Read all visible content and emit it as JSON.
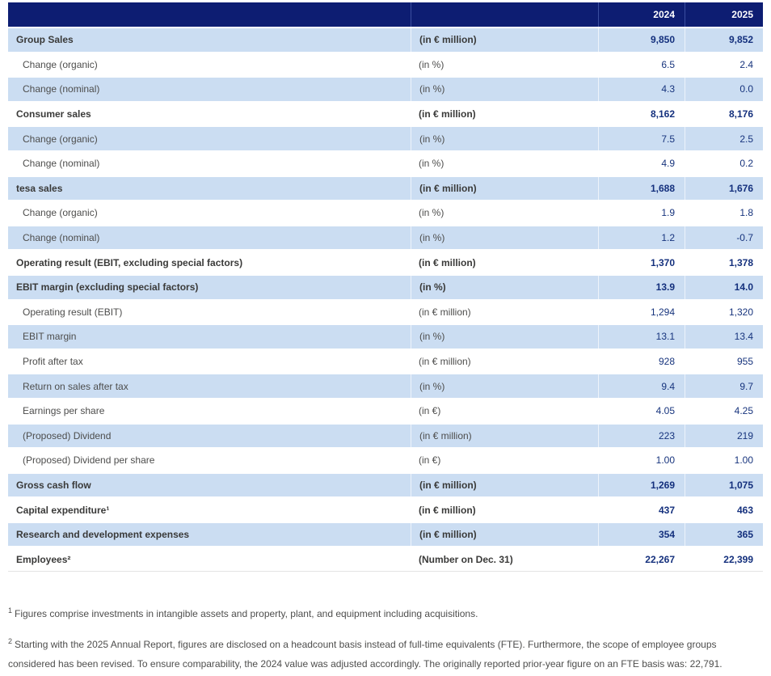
{
  "table": {
    "header": {
      "year_2024": "2024",
      "year_2025": "2025"
    },
    "rows": [
      {
        "label": "Group Sales",
        "unit": "(in € million)",
        "v2024": "9,850",
        "v2025": "9,852",
        "bold": true
      },
      {
        "label": "Change (organic)",
        "unit": "(in %)",
        "v2024": "6.5",
        "v2025": "2.4",
        "bold": false
      },
      {
        "label": "Change (nominal)",
        "unit": "(in %)",
        "v2024": "4.3",
        "v2025": "0.0",
        "bold": false
      },
      {
        "label": "Consumer sales",
        "unit": "(in € million)",
        "v2024": "8,162",
        "v2025": "8,176",
        "bold": true
      },
      {
        "label": "Change (organic)",
        "unit": "(in %)",
        "v2024": "7.5",
        "v2025": "2.5",
        "bold": false
      },
      {
        "label": "Change (nominal)",
        "unit": "(in %)",
        "v2024": "4.9",
        "v2025": "0.2",
        "bold": false
      },
      {
        "label": "tesa sales",
        "unit": "(in € million)",
        "v2024": "1,688",
        "v2025": "1,676",
        "bold": true
      },
      {
        "label": "Change (organic)",
        "unit": "(in %)",
        "v2024": "1.9",
        "v2025": "1.8",
        "bold": false
      },
      {
        "label": "Change (nominal)",
        "unit": "(in %)",
        "v2024": "1.2",
        "v2025": "-0.7",
        "bold": false
      },
      {
        "label": "Operating result (EBIT, excluding special factors)",
        "unit": "(in € million)",
        "v2024": "1,370",
        "v2025": "1,378",
        "bold": true
      },
      {
        "label": "EBIT margin (excluding special factors)",
        "unit": "(in %)",
        "v2024": "13.9",
        "v2025": "14.0",
        "bold": true
      },
      {
        "label": "Operating result (EBIT)",
        "unit": "(in € million)",
        "v2024": "1,294",
        "v2025": "1,320",
        "bold": false
      },
      {
        "label": "EBIT margin",
        "unit": "(in %)",
        "v2024": "13.1",
        "v2025": "13.4",
        "bold": false
      },
      {
        "label": "Profit after tax",
        "unit": "(in € million)",
        "v2024": "928",
        "v2025": "955",
        "bold": false
      },
      {
        "label": "Return on sales after tax",
        "unit": "(in %)",
        "v2024": "9.4",
        "v2025": "9.7",
        "bold": false
      },
      {
        "label": "Earnings per share",
        "unit": "(in €)",
        "v2024": "4.05",
        "v2025": "4.25",
        "bold": false
      },
      {
        "label": "(Proposed) Dividend",
        "unit": "(in € million)",
        "v2024": "223",
        "v2025": "219",
        "bold": false
      },
      {
        "label": "(Proposed) Dividend per share",
        "unit": "(in €)",
        "v2024": "1.00",
        "v2025": "1.00",
        "bold": false
      },
      {
        "label": "Gross cash flow",
        "unit": "(in € million)",
        "v2024": "1,269",
        "v2025": "1,075",
        "bold": true
      },
      {
        "label": "Capital expenditure¹",
        "unit": "(in € million)",
        "v2024": "437",
        "v2025": "463",
        "bold": true
      },
      {
        "label": "Research and development expenses",
        "unit": "(in € million)",
        "v2024": "354",
        "v2025": "365",
        "bold": true
      },
      {
        "label": "Employees²",
        "unit": "(Number on Dec. 31)",
        "v2024": "22,267",
        "v2025": "22,399",
        "bold": true
      }
    ]
  },
  "footnotes": [
    {
      "marker": "1",
      "text": "Figures comprise investments in intangible assets and property, plant, and equipment including acquisitions."
    },
    {
      "marker": "2",
      "text": "Starting with the 2025 Annual Report, figures are disclosed on a headcount basis instead of full-time equivalents (FTE). Furthermore, the scope of employee groups considered has been revised. To ensure comparability, the 2024 value was adjusted accordingly. The originally reported prior-year figure on an FTE basis was: 22,791."
    }
  ],
  "colors": {
    "header_navy": "#0d1d72",
    "row_blue": "#cbddf2",
    "value_navy": "#17347d",
    "label_gray": "#4d4d4c",
    "bold_text": "#3a3a39",
    "footnote_gray": "#4e4e4d"
  }
}
